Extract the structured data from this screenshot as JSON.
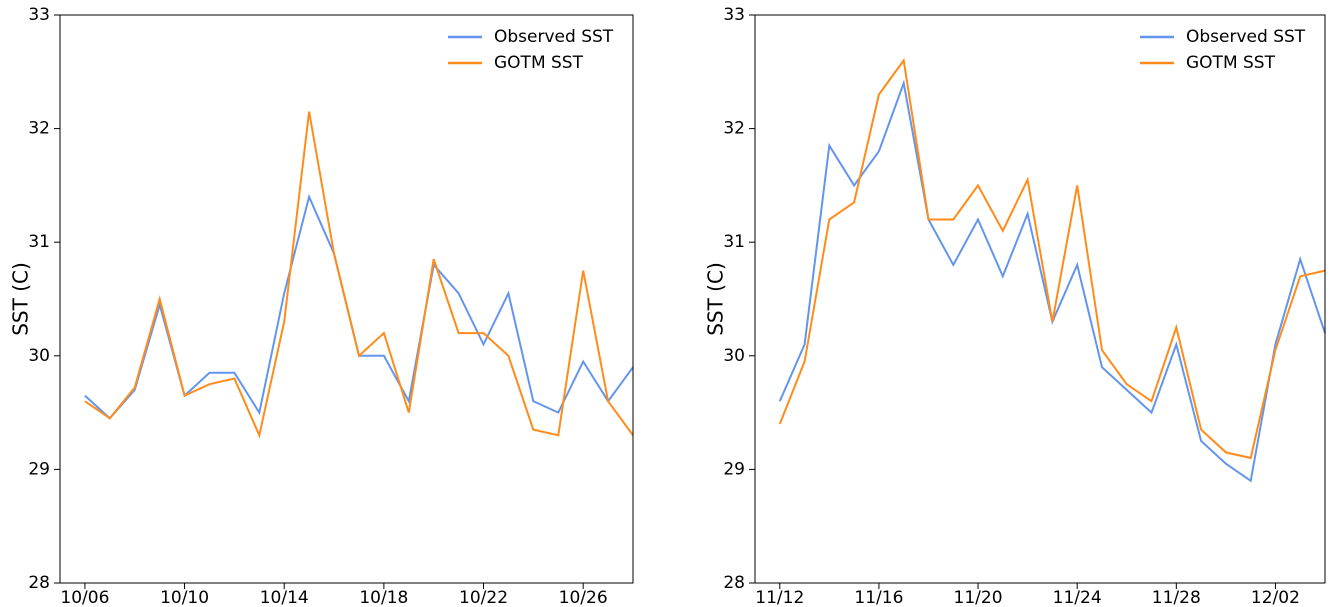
{
  "chart_data": [
    {
      "type": "line",
      "ylabel": "SST (C)",
      "legend": "upper right",
      "x": [
        "10/06",
        "10/07",
        "10/08",
        "10/09",
        "10/10",
        "10/11",
        "10/12",
        "10/13",
        "10/14",
        "10/15",
        "10/16",
        "10/17",
        "10/18",
        "10/19",
        "10/20",
        "10/21",
        "10/22",
        "10/23",
        "10/24",
        "10/25",
        "10/26",
        "10/27",
        "10/28"
      ],
      "series": [
        {
          "name": "Observed SST",
          "color": "#6495ed",
          "values": [
            29.65,
            29.45,
            29.7,
            30.45,
            29.65,
            29.85,
            29.85,
            29.5,
            30.55,
            31.4,
            30.9,
            30.0,
            30.0,
            29.6,
            30.8,
            30.55,
            30.1,
            30.55,
            29.6,
            29.5,
            29.95,
            29.6,
            29.9
          ]
        },
        {
          "name": "GOTM SST",
          "color": "#ff8c1a",
          "values": [
            29.6,
            29.45,
            29.72,
            30.5,
            29.65,
            29.75,
            29.8,
            29.3,
            30.3,
            32.15,
            30.9,
            30.0,
            30.2,
            29.5,
            30.85,
            30.2,
            30.2,
            30.0,
            29.35,
            29.3,
            30.75,
            29.6,
            29.3
          ]
        }
      ],
      "xlim": [
        "10/05",
        "10/28"
      ],
      "xticks": [
        "10/06",
        "10/10",
        "10/14",
        "10/18",
        "10/22",
        "10/26"
      ],
      "ylim": [
        28,
        33
      ],
      "yticks": [
        28,
        29,
        30,
        31,
        32,
        33
      ]
    },
    {
      "type": "line",
      "ylabel": "SST (C)",
      "legend": "upper right",
      "x": [
        "11/12",
        "11/13",
        "11/14",
        "11/15",
        "11/16",
        "11/17",
        "11/18",
        "11/19",
        "11/20",
        "11/21",
        "11/22",
        "11/23",
        "11/24",
        "11/25",
        "11/26",
        "11/27",
        "11/28",
        "11/29",
        "11/30",
        "12/01",
        "12/02",
        "12/03",
        "12/04"
      ],
      "series": [
        {
          "name": "Observed SST",
          "color": "#6495ed",
          "values": [
            29.6,
            30.1,
            31.85,
            31.5,
            31.8,
            32.4,
            31.2,
            30.8,
            31.2,
            30.7,
            31.25,
            30.3,
            30.8,
            29.9,
            29.7,
            29.5,
            30.1,
            29.25,
            29.05,
            28.9,
            30.1,
            30.85,
            30.2
          ]
        },
        {
          "name": "GOTM SST",
          "color": "#ff8c1a",
          "values": [
            29.4,
            29.95,
            31.2,
            31.35,
            32.3,
            32.6,
            31.2,
            31.2,
            31.5,
            31.1,
            31.55,
            30.3,
            31.5,
            30.05,
            29.75,
            29.6,
            30.25,
            29.35,
            29.15,
            29.1,
            30.05,
            30.7,
            30.75
          ]
        }
      ],
      "xlim": [
        "11/11",
        "12/04"
      ],
      "xticks": [
        "11/12",
        "11/16",
        "11/20",
        "11/24",
        "11/28",
        "12/02"
      ],
      "ylim": [
        28,
        33
      ],
      "yticks": [
        28,
        29,
        30,
        31,
        32,
        33
      ]
    }
  ]
}
